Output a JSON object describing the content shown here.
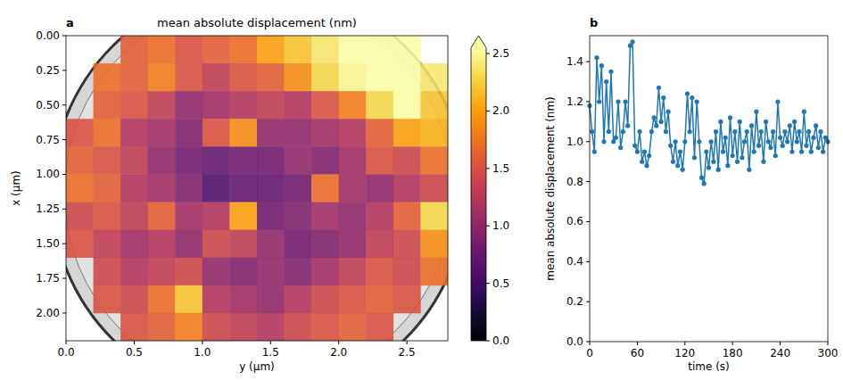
{
  "chart_data": [
    {
      "type": "heatmap",
      "panel_label": "a",
      "title": "mean absolute displacement (nm)",
      "x_label": "y (µm)",
      "y_label": "x (µm)",
      "xlim": [
        0,
        2.8
      ],
      "ylim": [
        2.2,
        0
      ],
      "xticks": [
        {
          "value": 0,
          "label": "0.0"
        },
        0.5,
        {
          "value": 1,
          "label": "1.0"
        },
        1.5,
        {
          "value": 2,
          "label": "2.0"
        },
        2.5
      ],
      "yticks": [
        {
          "value": 0,
          "label": "0.00"
        },
        0.25,
        {
          "value": 0.5,
          "label": "0.50"
        },
        0.75,
        {
          "value": 1,
          "label": "1.00"
        },
        1.25,
        {
          "value": 1.5,
          "label": "1.50"
        },
        1.75,
        {
          "value": 2,
          "label": "2.00"
        }
      ],
      "x_edges": [
        0,
        0.2,
        0.4,
        0.6,
        0.8,
        1,
        1.2,
        1.4,
        1.6,
        1.8,
        2,
        2.2,
        2.4,
        2.6,
        2.8
      ],
      "y_edges": [
        0,
        0.2,
        0.4,
        0.6,
        0.8,
        1,
        1.2,
        1.4,
        1.6,
        1.8,
        2,
        2.2
      ],
      "cells": [
        [
          null,
          null,
          1.6,
          1.7,
          1.5,
          1.6,
          1.7,
          2.0,
          2.2,
          2.4,
          2.7,
          2.8,
          2.7,
          null
        ],
        [
          null,
          1.7,
          1.6,
          1.8,
          1.5,
          1.3,
          1.5,
          1.6,
          1.9,
          2.3,
          2.5,
          2.7,
          2.6,
          2.4
        ],
        [
          null,
          1.6,
          1.5,
          1.3,
          1.0,
          1.1,
          1.2,
          1.3,
          1.2,
          1.5,
          1.8,
          2.3,
          2.6,
          2.2
        ],
        [
          1.5,
          1.7,
          1.2,
          1.1,
          0.9,
          1.5,
          1.9,
          1.0,
          1.0,
          1.1,
          1.2,
          1.6,
          2.0,
          2.1
        ],
        [
          1.6,
          1.5,
          1.3,
          1.0,
          0.8,
          0.7,
          0.8,
          0.8,
          1.0,
          0.9,
          1.1,
          1.5,
          1.4,
          1.7
        ],
        [
          1.7,
          1.6,
          1.2,
          1.1,
          0.9,
          0.6,
          0.7,
          0.7,
          0.8,
          1.7,
          1.1,
          1.0,
          1.2,
          1.4
        ],
        [
          1.4,
          1.5,
          1.3,
          1.6,
          1.1,
          1.2,
          2.0,
          0.8,
          0.9,
          1.1,
          1.0,
          1.2,
          1.6,
          2.3
        ],
        [
          1.5,
          1.3,
          1.1,
          1.2,
          1.0,
          1.4,
          1.3,
          1.0,
          0.8,
          0.9,
          1.0,
          1.3,
          1.4,
          1.9
        ],
        [
          null,
          1.4,
          1.2,
          1.3,
          1.4,
          1.0,
          0.9,
          1.0,
          0.9,
          1.1,
          1.3,
          1.5,
          1.4,
          1.7
        ],
        [
          null,
          1.5,
          1.4,
          1.7,
          2.2,
          1.2,
          1.1,
          1.0,
          1.2,
          1.4,
          1.5,
          1.6,
          1.5,
          null
        ],
        [
          null,
          null,
          1.5,
          1.6,
          1.8,
          1.4,
          1.3,
          1.2,
          1.4,
          1.5,
          1.6,
          1.5,
          null,
          null
        ]
      ],
      "colorbar": {
        "range": [
          0,
          2.55
        ],
        "ticks": [
          {
            "value": 0,
            "label": "0.0"
          },
          0.5,
          {
            "value": 1,
            "label": "1.0"
          },
          1.5,
          {
            "value": 2,
            "label": "2.0"
          },
          2.5
        ]
      }
    },
    {
      "type": "line",
      "panel_label": "b",
      "x_label": "time (s)",
      "y_label": "mean absolute displacement (nm)",
      "color": "#1f77b4",
      "marker": "circle",
      "xlim": [
        0,
        300
      ],
      "ylim": [
        0,
        1.53
      ],
      "xticks": [
        0,
        60,
        120,
        180,
        240,
        300
      ],
      "yticks": [
        {
          "value": 0,
          "label": "0.0"
        },
        0.2,
        0.4,
        0.6,
        0.8,
        {
          "value": 1,
          "label": "1.0"
        },
        1.2,
        1.4
      ],
      "x": [
        0,
        3,
        6,
        9,
        12,
        15,
        18,
        21,
        24,
        27,
        30,
        33,
        36,
        39,
        42,
        45,
        48,
        51,
        54,
        57,
        60,
        63,
        66,
        69,
        72,
        75,
        78,
        81,
        84,
        87,
        90,
        93,
        96,
        99,
        102,
        105,
        108,
        111,
        114,
        117,
        120,
        123,
        126,
        129,
        132,
        135,
        138,
        141,
        144,
        147,
        150,
        153,
        156,
        159,
        162,
        165,
        168,
        171,
        174,
        177,
        180,
        183,
        186,
        189,
        192,
        195,
        198,
        201,
        204,
        207,
        210,
        213,
        216,
        219,
        222,
        225,
        228,
        231,
        234,
        237,
        240,
        243,
        246,
        249,
        252,
        255,
        258,
        261,
        264,
        267,
        270,
        273,
        276,
        279,
        282,
        285,
        288,
        291,
        294,
        297,
        300
      ],
      "values": [
        1.18,
        1.05,
        0.95,
        1.42,
        1.2,
        1.38,
        1.0,
        1.3,
        1.05,
        1.35,
        1.0,
        1.02,
        1.2,
        0.97,
        1.05,
        1.2,
        1.08,
        1.48,
        1.5,
        0.98,
        0.95,
        1.05,
        0.9,
        0.95,
        0.88,
        0.93,
        1.05,
        1.12,
        1.08,
        1.27,
        1.1,
        1.22,
        1.05,
        1.15,
        0.98,
        0.9,
        1.0,
        0.88,
        0.95,
        0.86,
        1.0,
        1.24,
        1.05,
        1.22,
        0.92,
        1.2,
        1.0,
        0.82,
        0.79,
        0.95,
        0.87,
        1.0,
        0.9,
        1.05,
        0.86,
        1.1,
        0.95,
        1.02,
        0.88,
        1.12,
        0.93,
        1.05,
        0.9,
        1.1,
        0.92,
        1.0,
        1.05,
        0.86,
        1.08,
        0.95,
        1.15,
        0.98,
        1.05,
        0.9,
        1.1,
        1.0,
        0.97,
        1.05,
        0.93,
        1.2,
        1.02,
        0.98,
        1.05,
        1.0,
        1.08,
        0.95,
        1.1,
        1.0,
        1.05,
        0.95,
        1.15,
        0.98,
        1.05,
        0.95,
        1.02,
        1.08,
        0.97,
        1.05,
        0.95,
        1.02,
        1.0
      ]
    }
  ]
}
